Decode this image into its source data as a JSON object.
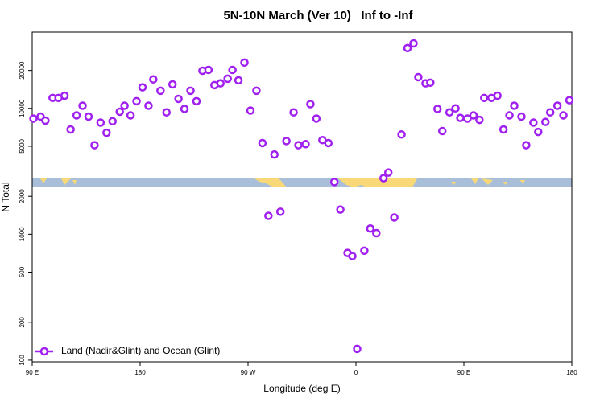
{
  "chart_data": {
    "type": "scatter",
    "title": "5N-10N March (Ver 10)   Inf to -Inf",
    "x_label": "Longitude (deg E)",
    "y_label": "N Total",
    "log_y": true,
    "grid": false,
    "legend_position": "bottom-left",
    "xlim": [
      90,
      540
    ],
    "ylim": [
      97,
      40300
    ],
    "xticks": [
      {
        "value": 90,
        "label": "90 E"
      },
      {
        "value": 180,
        "label": "180"
      },
      {
        "value": 270,
        "label": "90 W"
      },
      {
        "value": 360,
        "label": "0"
      },
      {
        "value": 450,
        "label": "90 E"
      },
      {
        "value": 540,
        "label": "180"
      }
    ],
    "yticks": [
      100,
      200,
      500,
      1000,
      2000,
      5000,
      10000,
      20000
    ],
    "x": [
      91,
      97,
      101,
      107,
      112,
      117,
      122,
      127,
      132,
      137,
      142,
      147,
      152,
      157,
      163,
      167,
      172,
      177,
      182,
      187,
      191,
      197,
      202,
      207,
      212,
      217,
      222,
      227,
      232,
      237,
      242,
      247,
      253,
      257,
      262,
      267,
      272,
      277,
      282,
      287,
      292,
      297,
      302,
      308,
      312,
      318,
      322,
      327,
      332,
      337,
      342,
      347,
      353,
      357,
      361,
      367,
      372,
      377,
      383,
      387,
      392,
      398,
      403,
      408,
      412,
      418,
      422,
      428,
      432,
      438,
      443,
      447,
      453,
      458,
      463,
      467,
      473,
      478,
      483,
      488,
      492,
      498,
      502,
      508,
      512,
      518,
      522,
      528,
      533,
      538
    ],
    "series": [
      {
        "name": "Land (Nadir&Glint) and Ocean (Glint)",
        "color": "#a020f0",
        "values": [
          8300,
          8600,
          8000,
          12100,
          12100,
          12600,
          6800,
          8800,
          10500,
          8600,
          5100,
          7700,
          6400,
          7900,
          9400,
          10500,
          8800,
          11400,
          14700,
          10500,
          17000,
          13800,
          9300,
          15500,
          11900,
          9900,
          13800,
          11400,
          19900,
          20200,
          15300,
          15800,
          17200,
          20200,
          16700,
          23100,
          9600,
          13800,
          5300,
          1400,
          4300,
          1510,
          5500,
          9300,
          5100,
          5200,
          10800,
          8300,
          5600,
          5300,
          2600,
          1570,
          710,
          670,
          123,
          740,
          1110,
          1020,
          2790,
          3090,
          1360,
          6200,
          30100,
          32800,
          17700,
          15800,
          16000,
          9900,
          6600,
          9300,
          10000,
          8400,
          8300,
          8800,
          8100,
          12100,
          12100,
          12600,
          6800,
          8800,
          10500,
          8600,
          5100,
          7700,
          6500,
          7800,
          9300,
          10500,
          8800,
          11600
        ]
      }
    ]
  }
}
